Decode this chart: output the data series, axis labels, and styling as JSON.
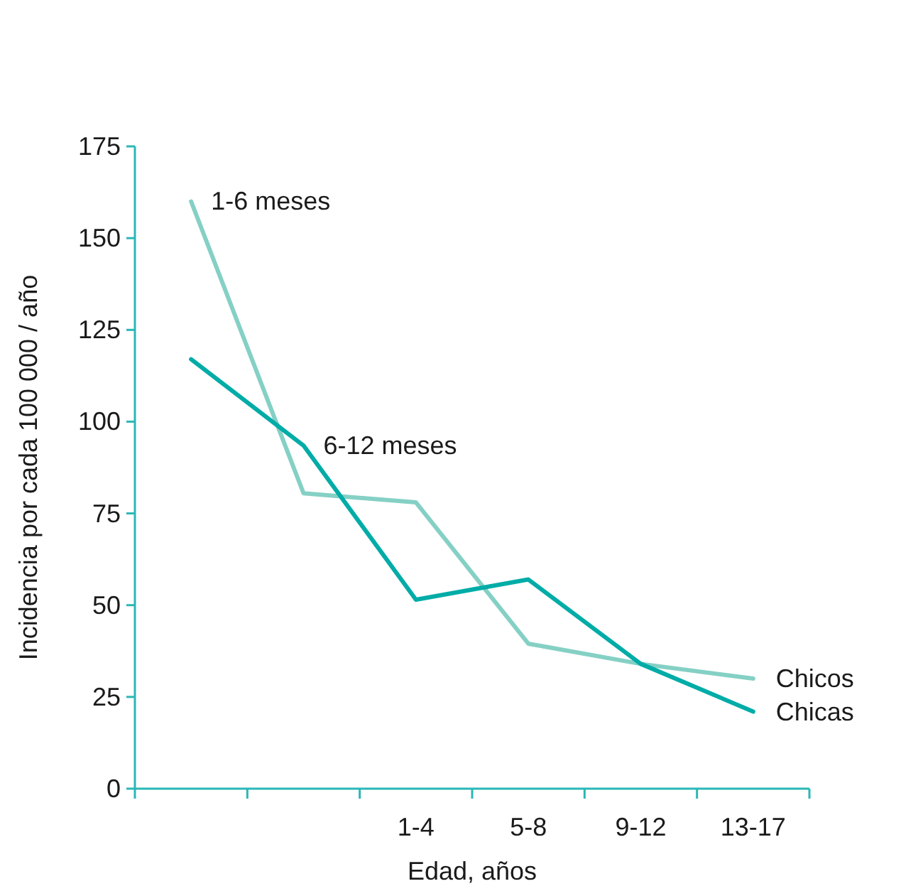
{
  "chart_data": {
    "type": "line",
    "xlabel": "Edad, años",
    "ylabel": "Incidencia por cada 100 000 / año",
    "categories": [
      null,
      null,
      "1-4",
      "5-8",
      "9-12",
      "13-17"
    ],
    "ylim": [
      0,
      175
    ],
    "yticks": [
      0,
      25,
      50,
      75,
      100,
      125,
      150,
      175
    ],
    "series": [
      {
        "name": "Chicos",
        "color": "#85d0c5",
        "values": [
          160,
          80.5,
          78,
          39.5,
          34,
          30
        ]
      },
      {
        "name": "Chicas",
        "color": "#00aca7",
        "values": [
          117,
          93.5,
          51.5,
          57,
          34,
          21
        ]
      }
    ],
    "annotations": [
      "1-6 meses",
      "6-12 meses"
    ],
    "grid": false,
    "legend": false,
    "marker": "none",
    "line_style": "solid"
  }
}
